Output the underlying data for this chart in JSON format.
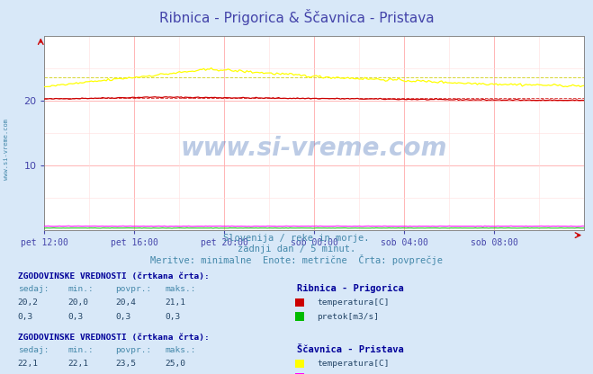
{
  "title": "Ribnica - Prigorica & Ščavnica - Pristava",
  "title_color": "#4444aa",
  "bg_color": "#d8e8f8",
  "plot_bg_color": "#ffffff",
  "xticklabels": [
    "pet 12:00",
    "pet 16:00",
    "pet 20:00",
    "sob 00:00",
    "sob 04:00",
    "sob 08:00"
  ],
  "xtick_positions": [
    0,
    48,
    96,
    144,
    192,
    240
  ],
  "xlim": [
    0,
    288
  ],
  "ylim": [
    0,
    30
  ],
  "yticks": [
    10,
    20
  ],
  "n_points": 289,
  "color_ribnica_temp": "#cc0000",
  "color_ribnica_pretok": "#00bb00",
  "color_scavnica_temp": "#ffff00",
  "color_scavnica_pretok": "#ff00ff",
  "subtitle1": "Slovenija / reke in morje.",
  "subtitle2": "zadnji dan / 5 minut.",
  "subtitle3": "Meritve: minimalne  Enote: metrične  Črta: povprečje",
  "subtitle_color": "#4488aa",
  "table_header_color": "#000099",
  "table_value_color": "#224466",
  "table_label_color": "#4488aa",
  "watermark": "www.si-vreme.com",
  "watermark_color": "#2255aa",
  "watermark_alpha": 0.3,
  "left_label": "www.si-vreme.com",
  "left_label_color": "#4488aa",
  "tick_color": "#4444aa"
}
